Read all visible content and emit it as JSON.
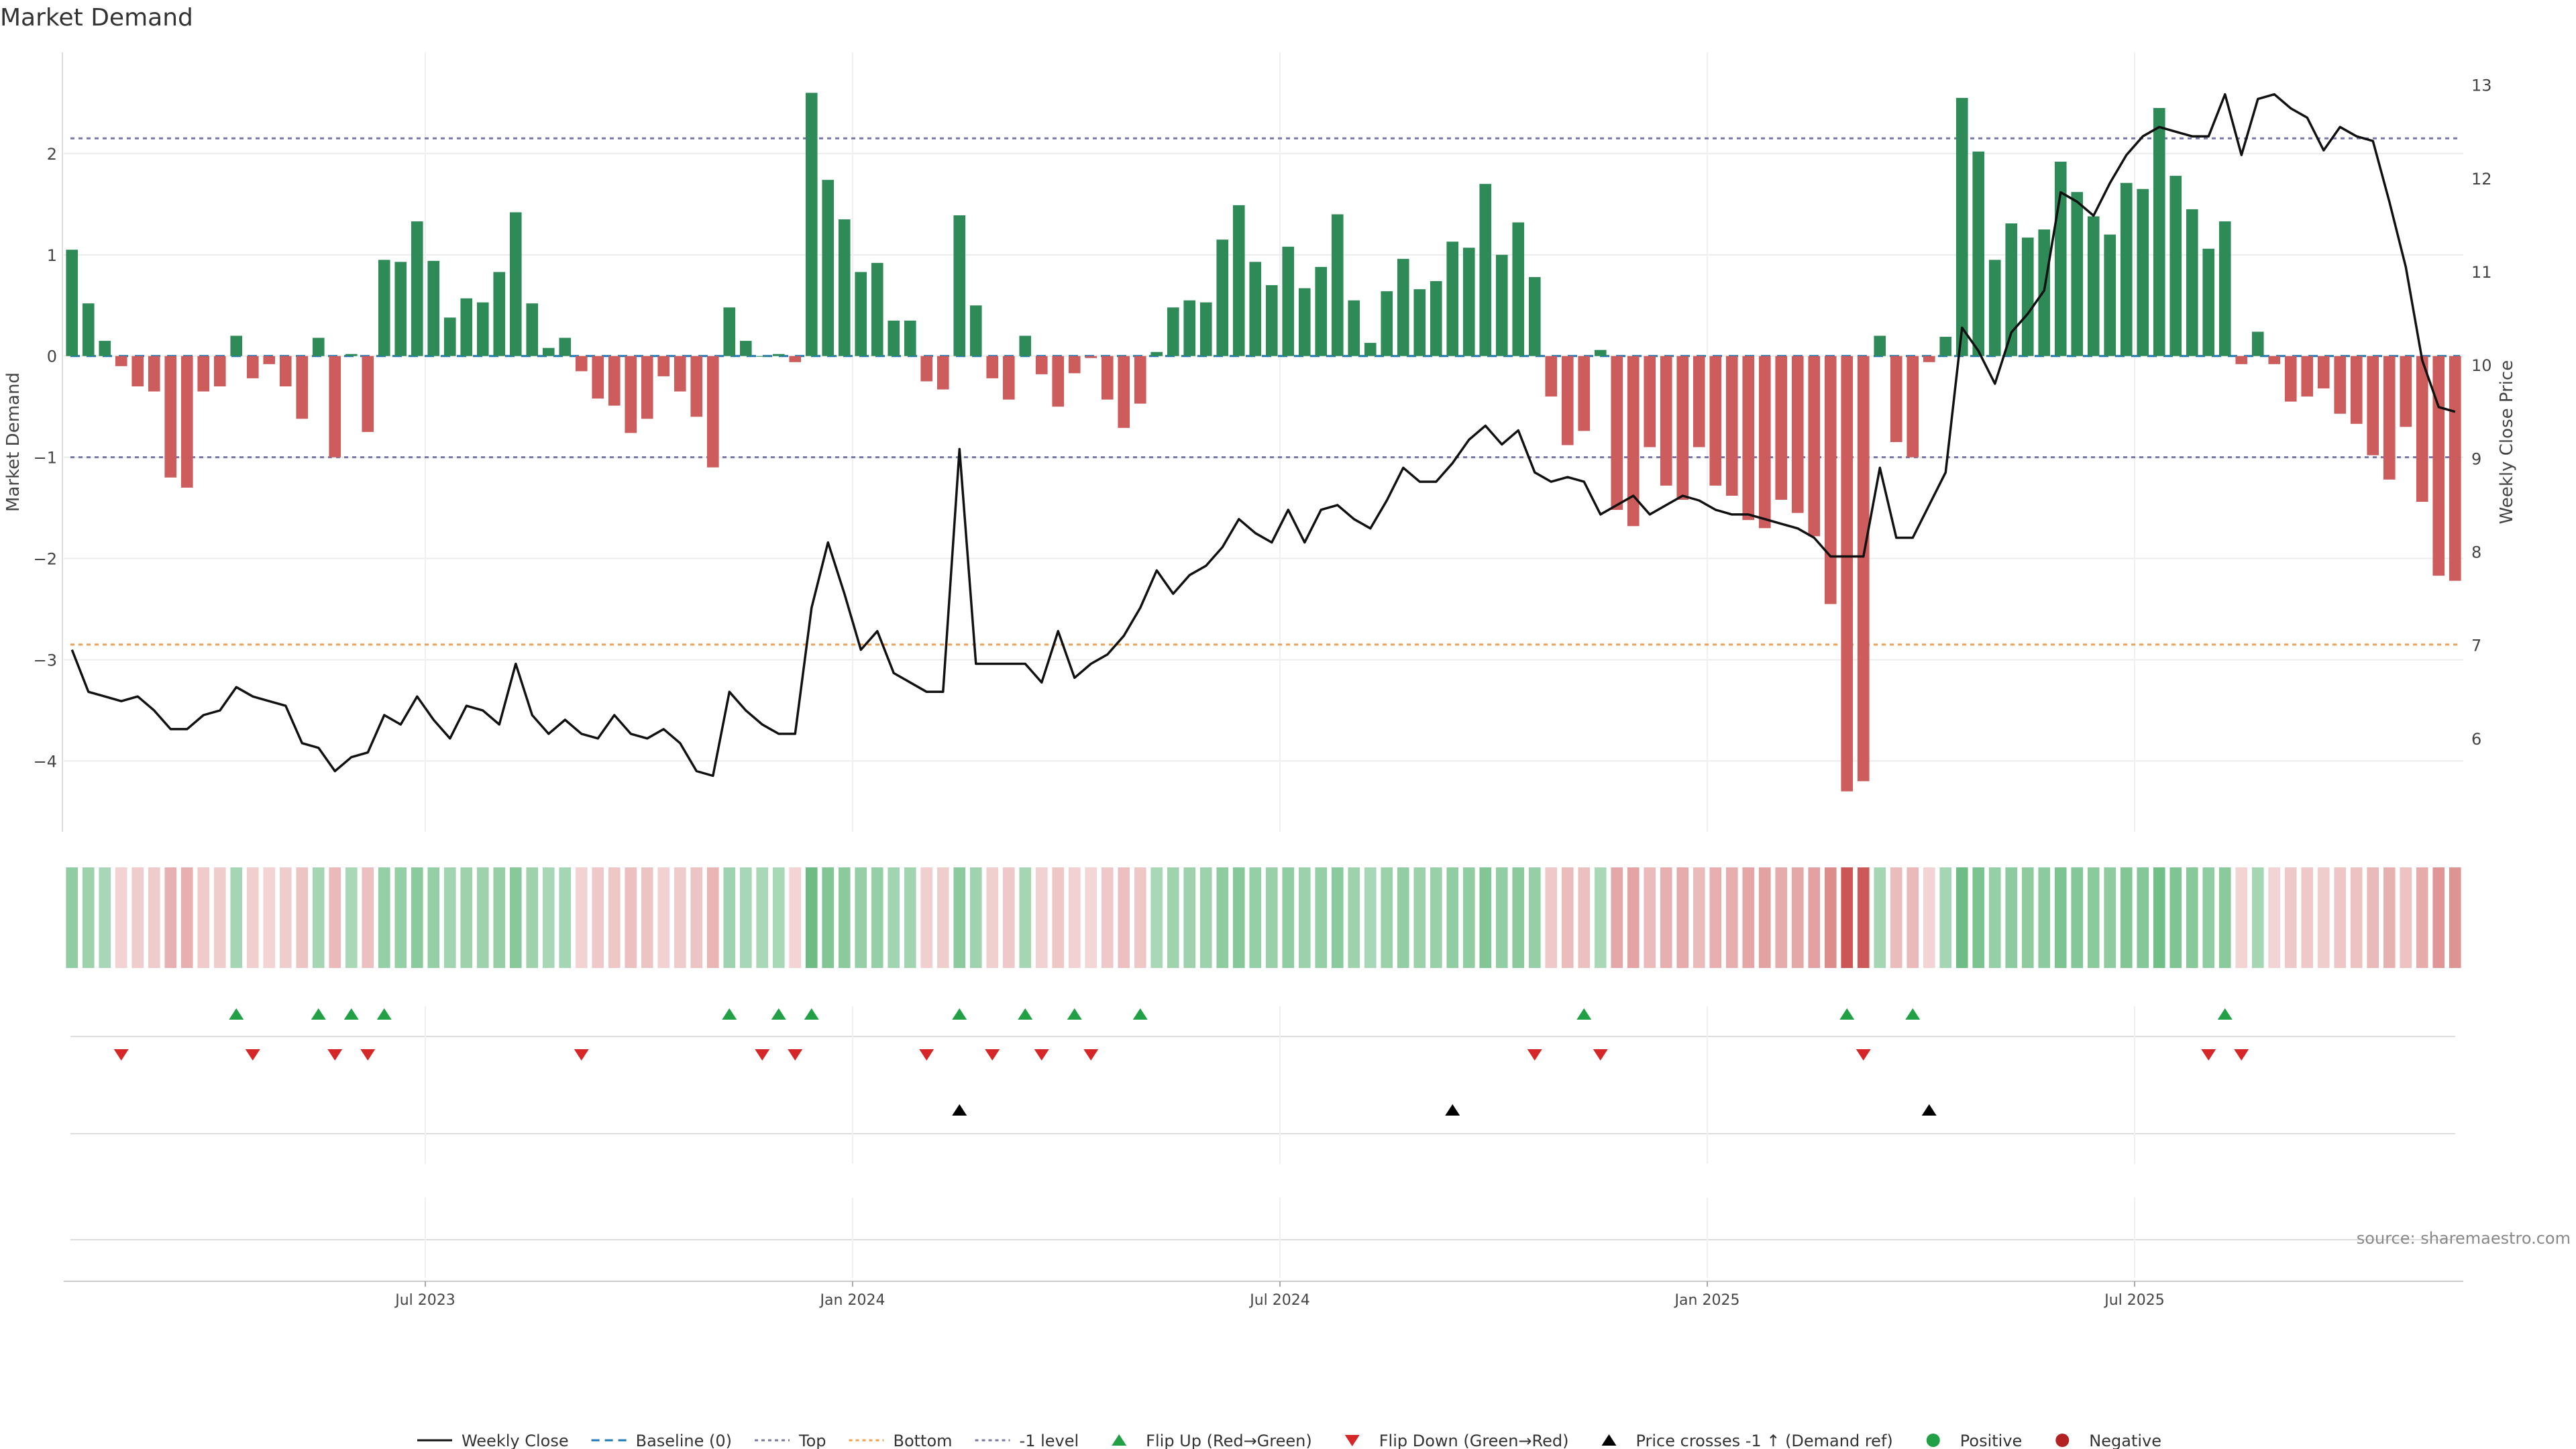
{
  "title": "Market Demand",
  "source": "source: sharemaestro.com",
  "colors": {
    "positive": "#2e8b57",
    "negative": "#cd5c5c",
    "price": "#111111",
    "flip_up": "#22a045",
    "flip_down": "#d62728",
    "cross": "#000000",
    "top_line": "#7777aa",
    "bottom_line": "#f0a050",
    "level_line": "#7777aa",
    "baseline": "#1f77b4"
  },
  "chart_data": {
    "type": "bar",
    "title": "Market Demand",
    "ylabel": "Market Demand",
    "y2label": "Weekly Close Price",
    "ylim": [
      -4.7,
      3.0
    ],
    "y_ticks": [
      2,
      1,
      0,
      -1,
      -2,
      -3,
      -4
    ],
    "y_tick_labels": [
      "2",
      "1",
      "0",
      "−1",
      "−2",
      "−3",
      "−4"
    ],
    "y2lim": [
      5.0,
      13.35
    ],
    "y2_ticks": [
      13,
      12,
      11,
      10,
      9,
      8,
      7,
      6
    ],
    "y2_tick_labels": [
      "13",
      "12",
      "11",
      "10",
      "9",
      "8",
      "7",
      "6"
    ],
    "x_ticks": [
      {
        "week": 22,
        "label": "Jul 2023"
      },
      {
        "week": 48,
        "label": "Jan 2024"
      },
      {
        "week": 74,
        "label": "Jul 2024"
      },
      {
        "week": 100,
        "label": "Jan 2025"
      },
      {
        "week": 126,
        "label": "Jul 2025"
      }
    ],
    "reference_lines": {
      "top": 2.15,
      "bottom": -2.85,
      "level": -1.0
    },
    "grid": true,
    "legend_position": "bottom-center",
    "demand": [
      1.05,
      0.52,
      0.15,
      -0.1,
      -0.3,
      -0.35,
      -1.2,
      -1.3,
      -0.35,
      -0.3,
      0.2,
      -0.22,
      -0.08,
      -0.3,
      -0.62,
      0.18,
      -1.0,
      0.02,
      -0.75,
      0.95,
      0.93,
      1.33,
      0.94,
      0.38,
      0.57,
      0.53,
      0.83,
      1.42,
      0.52,
      0.08,
      0.18,
      -0.15,
      -0.42,
      -0.49,
      -0.76,
      -0.62,
      -0.2,
      -0.35,
      -0.6,
      -1.1,
      0.48,
      0.15,
      0.0,
      0.02,
      -0.06,
      2.6,
      1.74,
      1.35,
      0.83,
      0.92,
      0.35,
      0.35,
      -0.25,
      -0.33,
      1.39,
      0.5,
      -0.22,
      -0.43,
      0.2,
      -0.18,
      -0.5,
      -0.17,
      -0.02,
      -0.43,
      -0.71,
      -0.47,
      0.04,
      0.48,
      0.55,
      0.53,
      1.15,
      1.49,
      0.93,
      0.7,
      1.08,
      0.67,
      0.88,
      1.4,
      0.55,
      0.13,
      0.64,
      0.96,
      0.66,
      0.74,
      1.13,
      1.07,
      1.7,
      1.0,
      1.32,
      0.78,
      -0.4,
      -0.88,
      -0.74,
      0.06,
      -1.52,
      -1.68,
      -0.9,
      -1.28,
      -1.42,
      -0.9,
      -1.28,
      -1.38,
      -1.62,
      -1.7,
      -1.42,
      -1.55,
      -1.78,
      -2.45,
      -4.3,
      -4.2,
      0.2,
      -0.85,
      -1.0,
      -0.06,
      0.19,
      2.55,
      2.02,
      0.95,
      1.31,
      1.17,
      1.25,
      1.92,
      1.62,
      1.38,
      1.2,
      1.71,
      1.65,
      2.45,
      1.78,
      1.45,
      1.06,
      1.33,
      -0.08,
      0.24,
      -0.08,
      -0.45,
      -0.4,
      -0.32,
      -0.57,
      -0.67,
      -0.98,
      -1.22,
      -0.7,
      -1.44,
      -2.17,
      -2.22
    ],
    "weekly_close": [
      6.95,
      6.5,
      6.45,
      6.4,
      6.45,
      6.3,
      6.1,
      6.1,
      6.25,
      6.3,
      6.55,
      6.45,
      6.4,
      6.35,
      5.95,
      5.9,
      5.65,
      5.8,
      5.85,
      6.25,
      6.15,
      6.45,
      6.2,
      6.0,
      6.35,
      6.3,
      6.15,
      6.8,
      6.25,
      6.05,
      6.2,
      6.05,
      6.0,
      6.25,
      6.05,
      6.0,
      6.1,
      5.95,
      5.65,
      5.6,
      6.5,
      6.3,
      6.15,
      6.05,
      6.05,
      7.4,
      8.1,
      7.55,
      6.95,
      7.15,
      6.7,
      6.6,
      6.5,
      6.5,
      9.1,
      6.8,
      6.8,
      6.8,
      6.8,
      6.6,
      7.15,
      6.65,
      6.8,
      6.9,
      7.1,
      7.4,
      7.8,
      7.55,
      7.75,
      7.85,
      8.05,
      8.35,
      8.2,
      8.1,
      8.45,
      8.1,
      8.45,
      8.5,
      8.35,
      8.25,
      8.55,
      8.9,
      8.75,
      8.75,
      8.95,
      9.2,
      9.35,
      9.15,
      9.3,
      8.85,
      8.75,
      8.8,
      8.75,
      8.4,
      8.5,
      8.6,
      8.4,
      8.5,
      8.6,
      8.55,
      8.45,
      8.4,
      8.4,
      8.35,
      8.3,
      8.25,
      8.15,
      7.95,
      7.95,
      7.95,
      8.9,
      8.15,
      8.15,
      8.5,
      8.85,
      10.4,
      10.15,
      9.8,
      10.35,
      10.55,
      10.8,
      11.85,
      11.75,
      11.6,
      11.95,
      12.25,
      12.45,
      12.55,
      12.5,
      12.45,
      12.45,
      12.9,
      12.25,
      12.85,
      12.9,
      12.75,
      12.65,
      12.3,
      12.55,
      12.45,
      12.4,
      11.75,
      11.05,
      10.05,
      9.55,
      9.5
    ],
    "flip_up_weeks": [
      10,
      15,
      17,
      19,
      40,
      43,
      45,
      54,
      58,
      61,
      65,
      92,
      108,
      112,
      131
    ],
    "flip_down_weeks": [
      3,
      11,
      16,
      18,
      31,
      42,
      44,
      52,
      56,
      59,
      62,
      89,
      93,
      109,
      130,
      132
    ],
    "price_cross_weeks": [
      54,
      84,
      113
    ]
  },
  "legend": [
    {
      "label": "Weekly Close",
      "icon": "solid-line"
    },
    {
      "label": "Baseline (0)",
      "icon": "dashed-line"
    },
    {
      "label": "Top",
      "icon": "dotted-line"
    },
    {
      "label": "Bottom",
      "icon": "dotted-line"
    },
    {
      "label": "-1 level",
      "icon": "dotted-line"
    },
    {
      "label": "Flip Up (Red→Green)",
      "icon": "triangle-up"
    },
    {
      "label": "Flip Down (Green→Red)",
      "icon": "triangle-down"
    },
    {
      "label": "Price crosses -1 ↑ (Demand ref)",
      "icon": "triangle-up"
    },
    {
      "label": "Positive",
      "icon": "circle"
    },
    {
      "label": "Negative",
      "icon": "circle"
    }
  ]
}
